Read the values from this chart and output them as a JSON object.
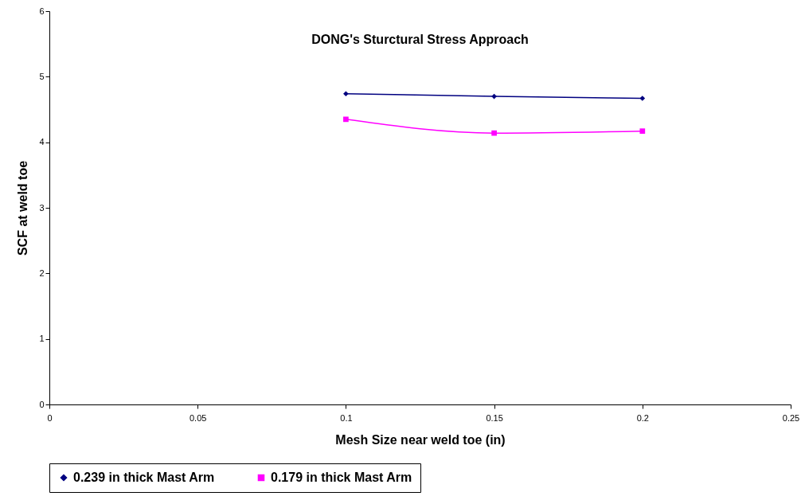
{
  "chart_data": {
    "type": "line",
    "title": "DONG's Sturctural Stress Approach",
    "xlabel": "Mesh Size near weld toe (in)",
    "ylabel": "SCF at weld toe",
    "x": [
      0.1,
      0.15,
      0.2
    ],
    "series": [
      {
        "name": "0.239 in thick Mast Arm",
        "color": "#000080",
        "marker": "diamond",
        "values": [
          4.74,
          4.7,
          4.67
        ]
      },
      {
        "name": "0.179 in thick Mast Arm",
        "color": "#ff00ff",
        "marker": "square",
        "values": [
          4.35,
          4.14,
          4.17
        ]
      }
    ],
    "xlim": [
      0,
      0.25
    ],
    "xticks": [
      0,
      0.05,
      0.1,
      0.15,
      0.2,
      0.25
    ],
    "ylim": [
      0,
      6
    ],
    "yticks": [
      0,
      1,
      2,
      3,
      4,
      5,
      6
    ],
    "grid": false,
    "legend": "bottom"
  }
}
